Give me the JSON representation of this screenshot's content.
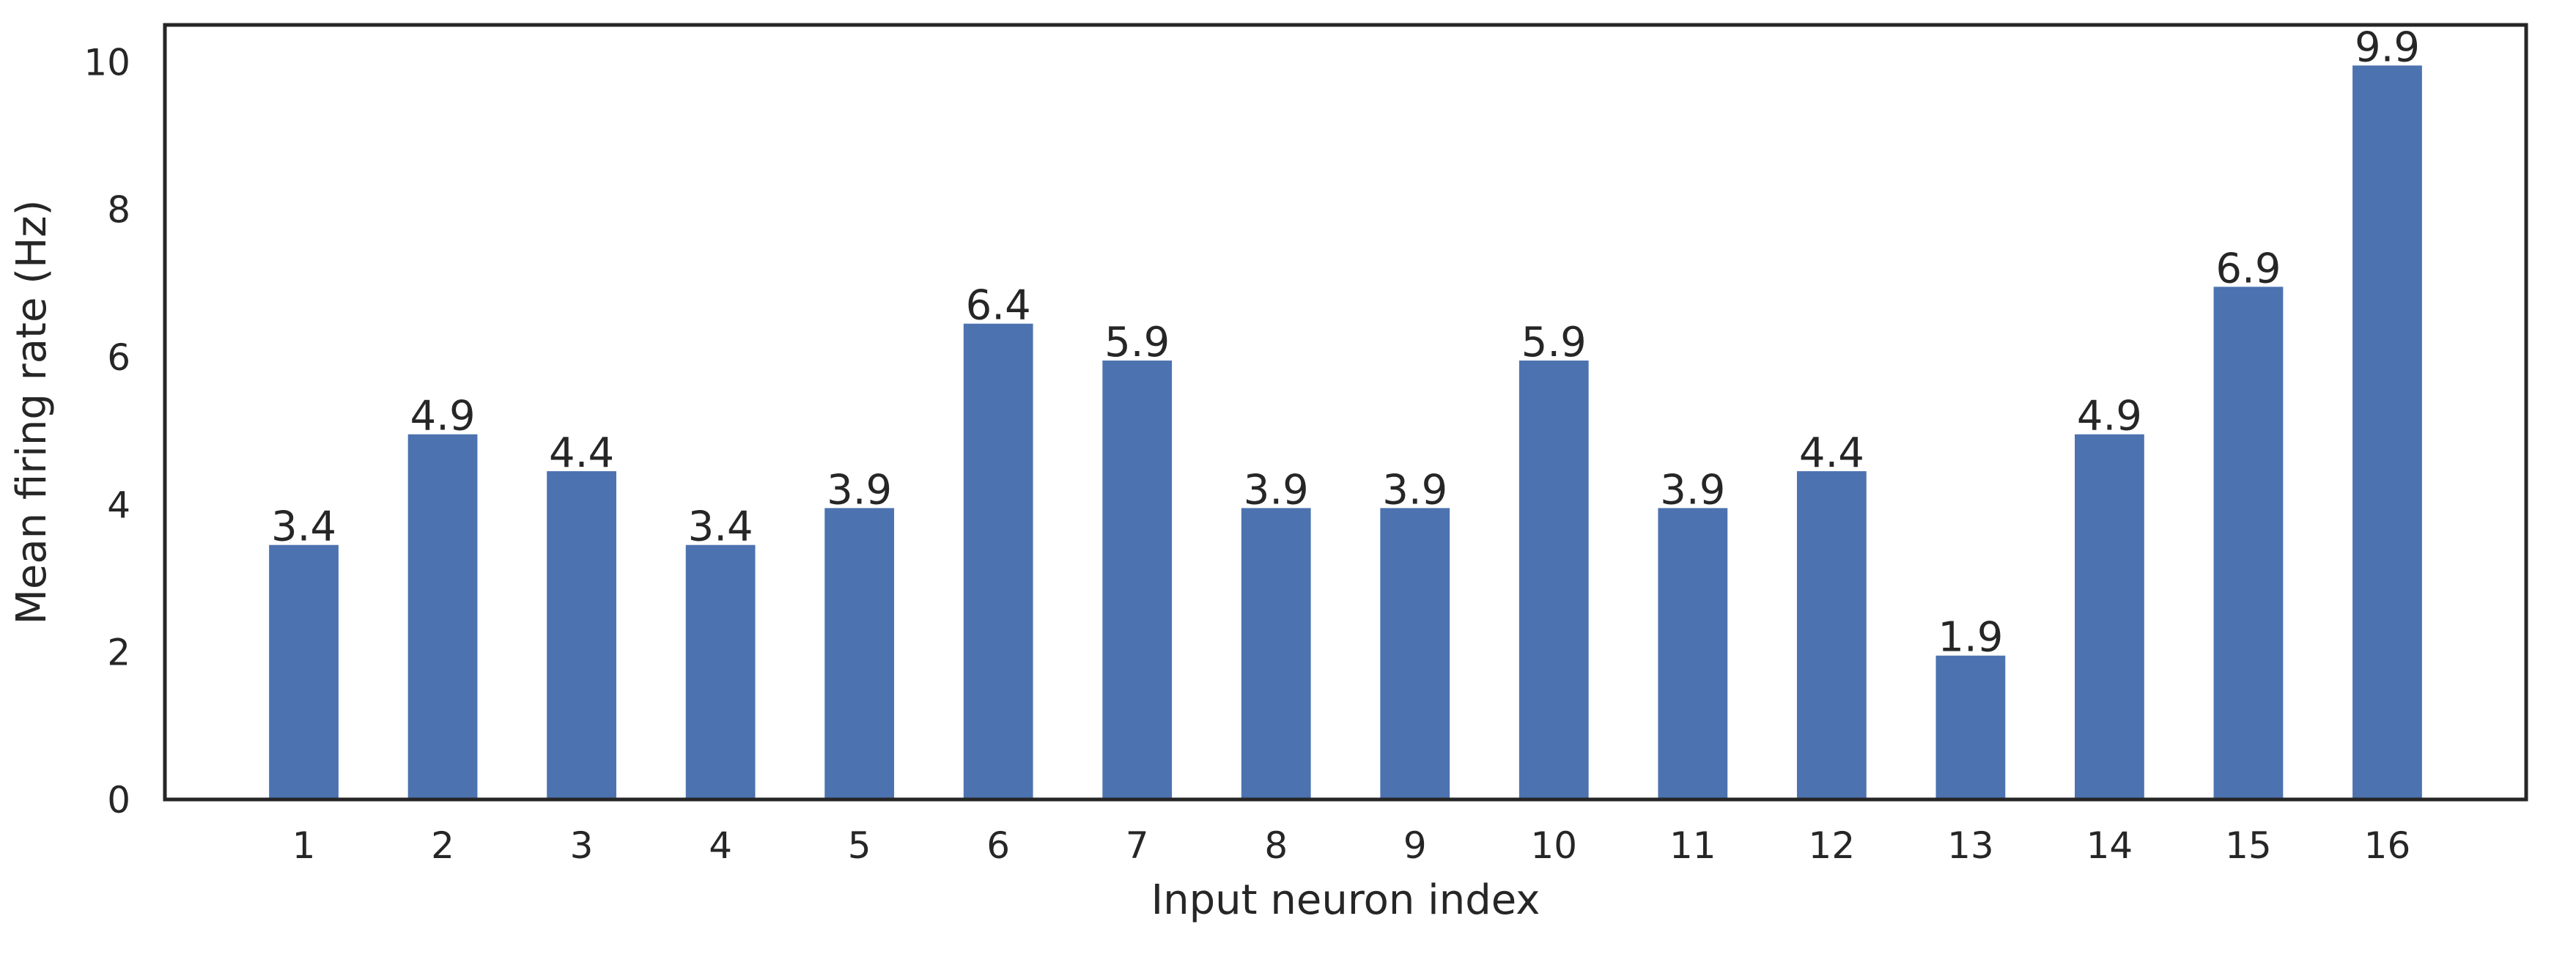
{
  "chart_data": {
    "type": "bar",
    "categories": [
      "1",
      "2",
      "3",
      "4",
      "5",
      "6",
      "7",
      "8",
      "9",
      "10",
      "11",
      "12",
      "13",
      "14",
      "15",
      "16"
    ],
    "values": [
      3.45,
      4.95,
      4.45,
      3.45,
      3.95,
      6.45,
      5.95,
      3.95,
      3.95,
      5.95,
      3.95,
      4.45,
      1.95,
      4.95,
      6.95,
      9.95
    ],
    "data_labels": [
      "3.4",
      "4.9",
      "4.4",
      "3.4",
      "3.9",
      "6.4",
      "5.9",
      "3.9",
      "3.9",
      "5.9",
      "3.9",
      "4.4",
      "1.9",
      "4.9",
      "6.9",
      "9.9"
    ],
    "title": "",
    "xlabel": "Input neuron index",
    "ylabel": "Mean firing rate (Hz)",
    "ylim": [
      0,
      10.5
    ],
    "yticks": [
      0,
      2,
      4,
      6,
      8,
      10
    ],
    "grid": false,
    "legend": "none",
    "bar_color": "#4c72b0",
    "axis_color": "#262626"
  }
}
